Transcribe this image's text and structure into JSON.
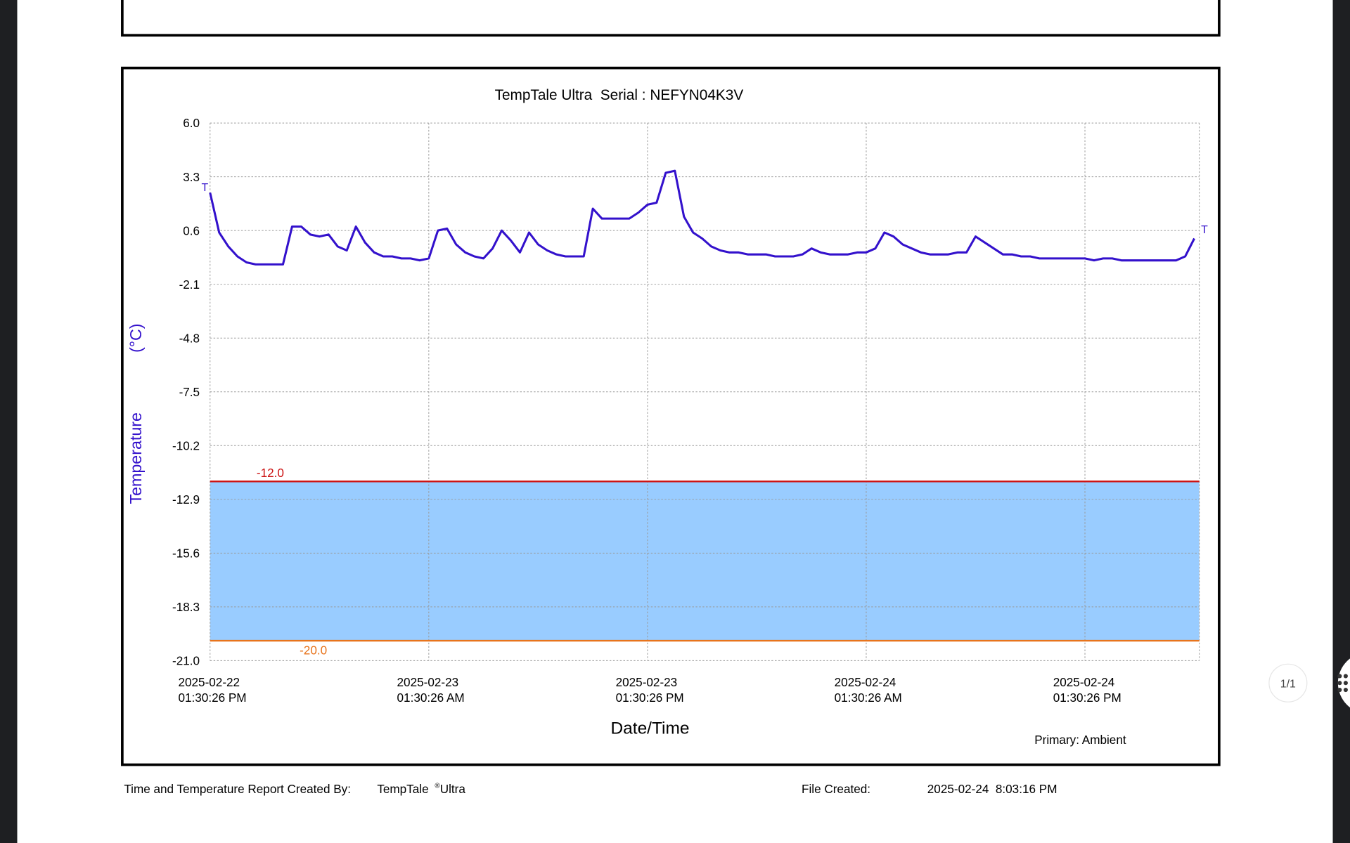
{
  "chart_data": {
    "type": "line",
    "title": "TempTale Ultra  Serial : NEFYN04K3V",
    "ylabel": "Temperature",
    "yunit": "(°C)",
    "xlabel": "Date/Time",
    "note": "Primary: Ambient",
    "end_marker": "T",
    "color": "#3311cc",
    "band_color": "#99ccff",
    "grid": true,
    "ylim": [
      -21,
      6
    ],
    "yticks": [
      {
        "value": 6,
        "label": "6.0"
      },
      3.3,
      0.6,
      -2.1,
      -4.8,
      -7.5,
      -10.2,
      -12.9,
      -15.6,
      -18.3,
      {
        "value": -21,
        "label": "-21.0"
      }
    ],
    "xlim": [
      "2025-02-22T13:30:26",
      "2025-02-24T19:47:00"
    ],
    "xticks": [
      {
        "value": "2025-02-22T13:30:26",
        "label": [
          "2025-02-22",
          "01:30:26 PM"
        ]
      },
      {
        "value": "2025-02-23T01:30:26",
        "label": [
          "2025-02-23",
          "01:30:26 AM"
        ]
      },
      {
        "value": "2025-02-23T13:30:26",
        "label": [
          "2025-02-23",
          "01:30:26 PM"
        ]
      },
      {
        "value": "2025-02-24T01:30:26",
        "label": [
          "2025-02-24",
          "01:30:26 AM"
        ]
      },
      {
        "value": "2025-02-24T13:30:26",
        "label": [
          "2025-02-24",
          "01:30:26 PM"
        ]
      }
    ],
    "limits": [
      {
        "value": -12,
        "label": "-12.0",
        "color": "#cc1111"
      },
      {
        "value": -20,
        "label": "-20.0",
        "color": "#e8741c"
      }
    ],
    "x": [
      "2025-02-22T13:30:26",
      "2025-02-22T14:00:26",
      "2025-02-22T14:30:26",
      "2025-02-22T15:00:26",
      "2025-02-22T15:30:26",
      "2025-02-22T16:00:26",
      "2025-02-22T16:30:26",
      "2025-02-22T17:00:26",
      "2025-02-22T17:30:26",
      "2025-02-22T18:00:26",
      "2025-02-22T18:30:26",
      "2025-02-22T19:00:26",
      "2025-02-22T19:30:26",
      "2025-02-22T20:00:26",
      "2025-02-22T20:30:26",
      "2025-02-22T21:00:26",
      "2025-02-22T21:30:26",
      "2025-02-22T22:00:26",
      "2025-02-22T22:30:26",
      "2025-02-22T23:00:26",
      "2025-02-22T23:30:26",
      "2025-02-23T00:00:26",
      "2025-02-23T00:30:26",
      "2025-02-23T01:00:26",
      "2025-02-23T01:30:26",
      "2025-02-23T02:00:26",
      "2025-02-23T02:30:26",
      "2025-02-23T03:00:26",
      "2025-02-23T03:30:26",
      "2025-02-23T04:00:26",
      "2025-02-23T04:30:26",
      "2025-02-23T05:00:26",
      "2025-02-23T05:30:26",
      "2025-02-23T06:00:26",
      "2025-02-23T06:30:26",
      "2025-02-23T07:00:26",
      "2025-02-23T07:30:26",
      "2025-02-23T08:00:26",
      "2025-02-23T08:30:26",
      "2025-02-23T09:00:26",
      "2025-02-23T09:30:26",
      "2025-02-23T10:00:26",
      "2025-02-23T10:30:26",
      "2025-02-23T11:00:26",
      "2025-02-23T11:30:26",
      "2025-02-23T12:00:26",
      "2025-02-23T12:30:26",
      "2025-02-23T13:00:26",
      "2025-02-23T13:30:26",
      "2025-02-23T14:00:26",
      "2025-02-23T14:30:26",
      "2025-02-23T15:00:26",
      "2025-02-23T15:30:26",
      "2025-02-23T16:00:26",
      "2025-02-23T16:30:26",
      "2025-02-23T17:00:26",
      "2025-02-23T17:30:26",
      "2025-02-23T18:00:26",
      "2025-02-23T18:30:26",
      "2025-02-23T19:00:26",
      "2025-02-23T19:30:26",
      "2025-02-23T20:00:26",
      "2025-02-23T20:30:26",
      "2025-02-23T21:00:26",
      "2025-02-23T21:30:26",
      "2025-02-23T22:00:26",
      "2025-02-23T22:30:26",
      "2025-02-23T23:00:26",
      "2025-02-23T23:30:26",
      "2025-02-24T00:00:26",
      "2025-02-24T00:30:26",
      "2025-02-24T01:00:26",
      "2025-02-24T01:30:26",
      "2025-02-24T02:00:26",
      "2025-02-24T02:30:26",
      "2025-02-24T03:00:26",
      "2025-02-24T03:30:26",
      "2025-02-24T04:00:26",
      "2025-02-24T04:30:26",
      "2025-02-24T05:00:26",
      "2025-02-24T05:30:26",
      "2025-02-24T06:00:26",
      "2025-02-24T06:30:26",
      "2025-02-24T07:00:26",
      "2025-02-24T07:30:26",
      "2025-02-24T08:00:26",
      "2025-02-24T08:30:26",
      "2025-02-24T09:00:26",
      "2025-02-24T09:30:26",
      "2025-02-24T10:00:26",
      "2025-02-24T10:30:26",
      "2025-02-24T11:00:26",
      "2025-02-24T11:30:26",
      "2025-02-24T12:00:26",
      "2025-02-24T12:30:26",
      "2025-02-24T13:00:26",
      "2025-02-24T13:30:26",
      "2025-02-24T14:00:26",
      "2025-02-24T14:30:26",
      "2025-02-24T15:00:26",
      "2025-02-24T15:30:26",
      "2025-02-24T16:00:26",
      "2025-02-24T16:30:26",
      "2025-02-24T17:00:26",
      "2025-02-24T17:30:26",
      "2025-02-24T18:00:26",
      "2025-02-24T18:30:26",
      "2025-02-24T19:00:26",
      "2025-02-24T19:30:26"
    ],
    "values": [
      2.5,
      0.5,
      -0.2,
      -0.7,
      -1.0,
      -1.1,
      -1.1,
      -1.1,
      -1.1,
      0.8,
      0.8,
      0.4,
      0.3,
      0.4,
      -0.2,
      -0.4,
      0.8,
      0.0,
      -0.5,
      -0.7,
      -0.7,
      -0.8,
      -0.8,
      -0.9,
      -0.8,
      0.6,
      0.7,
      -0.1,
      -0.5,
      -0.7,
      -0.8,
      -0.3,
      0.6,
      0.1,
      -0.5,
      0.5,
      -0.1,
      -0.4,
      -0.6,
      -0.7,
      -0.7,
      -0.7,
      1.7,
      1.2,
      1.2,
      1.2,
      1.2,
      1.5,
      1.9,
      2.0,
      3.5,
      3.6,
      1.3,
      0.5,
      0.2,
      -0.2,
      -0.4,
      -0.5,
      -0.5,
      -0.6,
      -0.6,
      -0.6,
      -0.7,
      -0.7,
      -0.7,
      -0.6,
      -0.3,
      -0.5,
      -0.6,
      -0.6,
      -0.6,
      -0.5,
      -0.5,
      -0.3,
      0.5,
      0.3,
      -0.1,
      -0.3,
      -0.5,
      -0.6,
      -0.6,
      -0.6,
      -0.5,
      -0.5,
      0.3,
      0.0,
      -0.3,
      -0.6,
      -0.6,
      -0.7,
      -0.7,
      -0.8,
      -0.8,
      -0.8,
      -0.8,
      -0.8,
      -0.8,
      -0.9,
      -0.8,
      -0.8,
      -0.9,
      -0.9,
      -0.9,
      -0.9,
      -0.9,
      -0.9,
      -0.9,
      -0.7,
      0.2
    ]
  },
  "footer": {
    "created_by": "Time and Temperature Report Created By:",
    "product": "TempTale",
    "reg": "®",
    "product_suffix": "Ultra",
    "file_created_label": "File Created:",
    "file_created": "2025-02-24  8:03:16 PM"
  },
  "viewer": {
    "page_indicator": "1/1"
  }
}
